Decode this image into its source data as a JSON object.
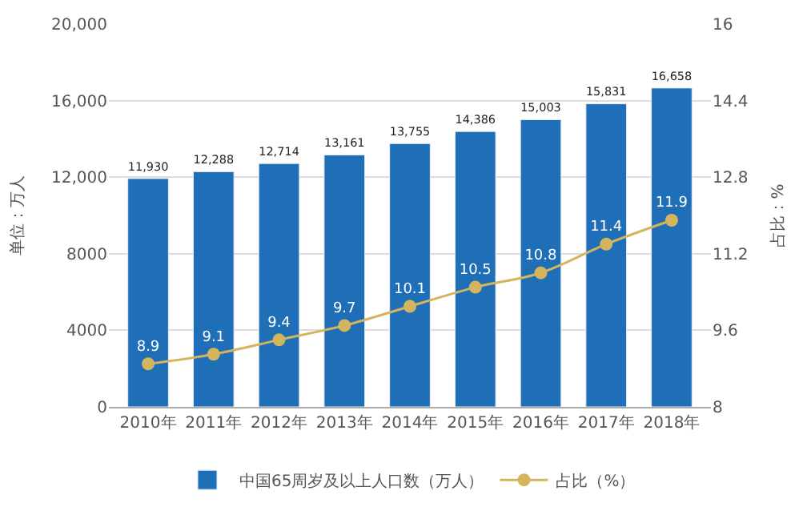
{
  "chart_data": {
    "type": "bar",
    "categories": [
      "2010年",
      "2011年",
      "2012年",
      "2013年",
      "2014年",
      "2015年",
      "2016年",
      "2017年",
      "2018年"
    ],
    "ylabel": "单位：万人",
    "y2label": "占比：%",
    "ylim": [
      0,
      20000
    ],
    "yticks": [
      0,
      4000,
      8000,
      {
        "value": 12000,
        "label": "12,000"
      },
      {
        "value": 16000,
        "label": "16,000"
      },
      {
        "value": 20000,
        "label": "20,000"
      }
    ],
    "y2lim": [
      8,
      16
    ],
    "y2ticks": [
      8,
      9.6,
      11.2,
      12.8,
      14.4,
      16
    ],
    "grid": "y",
    "legend": "bottom",
    "series": [
      {
        "name": "中国65周岁及以上人口数（万人）",
        "color": "#1f6fb8",
        "values": [
          11930,
          12288,
          12714,
          13161,
          13755,
          14386,
          15003,
          15831,
          16658
        ],
        "value_labels": [
          "11,930",
          "12,288",
          "12,714",
          "13,161",
          "13,755",
          "14,386",
          "15,003",
          "15,831",
          "16,658"
        ]
      },
      {
        "name": "占比（%）",
        "type": "line",
        "axis": "y2",
        "color": "#d4b45c",
        "marker": "circle",
        "values": [
          8.9,
          9.1,
          9.4,
          9.7,
          10.1,
          10.5,
          10.8,
          11.4,
          11.9
        ],
        "value_labels": [
          "8.9",
          "9.1",
          "9.4",
          "9.7",
          "10.1",
          "10.5",
          "10.8",
          "11.4",
          "11.9"
        ]
      }
    ]
  }
}
